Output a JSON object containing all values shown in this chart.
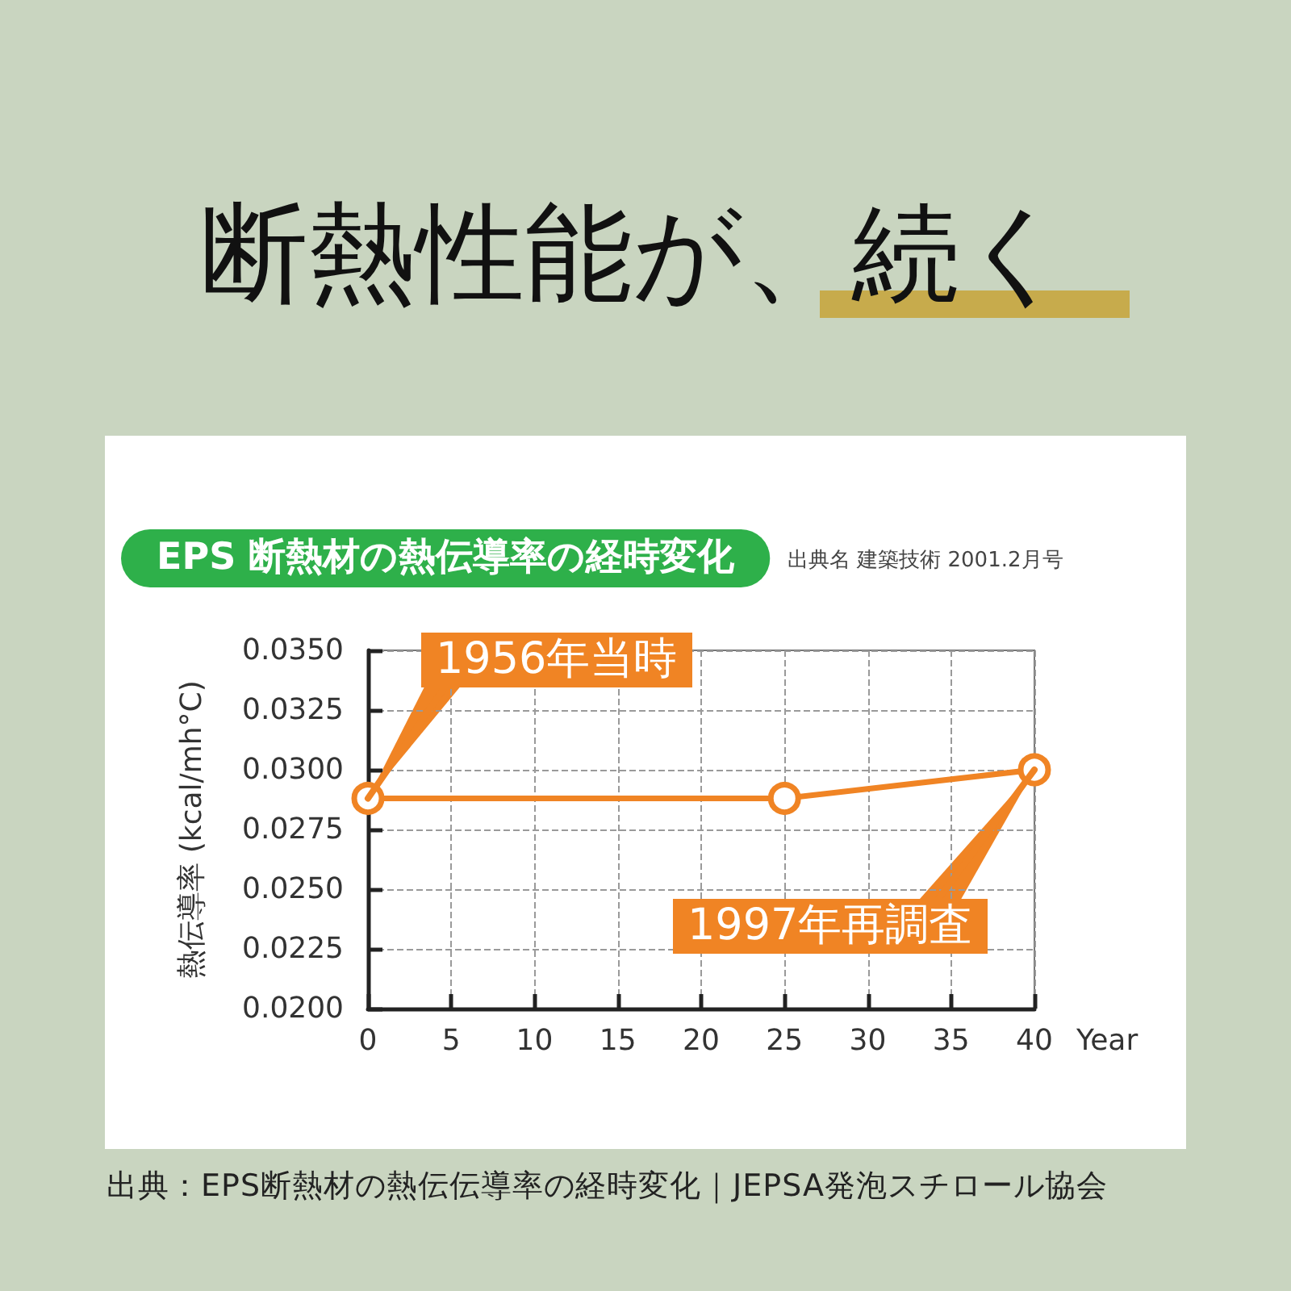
{
  "chart_data": {
    "type": "line",
    "title": "断熱性能が、続く",
    "subtitle": "EPS 断熱材の熱伝導率の経時変化",
    "xlabel": "Year",
    "ylabel": "熱伝導率 (kcal/mh°C)",
    "x": [
      0,
      25,
      40
    ],
    "series": [
      {
        "color": "#f08424",
        "values": [
          0.0288,
          0.0288,
          0.03
        ]
      }
    ],
    "xlim": [
      0,
      40
    ],
    "xticks": [
      0,
      5,
      10,
      15,
      20,
      25,
      30,
      35,
      40
    ],
    "ylim": [
      0.02,
      0.035
    ],
    "yticks": [
      {
        "value": 0.02,
        "label": "0.0200"
      },
      0.0225,
      {
        "value": 0.025,
        "label": "0.0250"
      },
      0.0275,
      {
        "value": 0.03,
        "label": "0.0300"
      },
      0.0325,
      {
        "value": 0.035,
        "label": "0.0350"
      }
    ],
    "grid": true,
    "marker": "circle",
    "line_style": "solid",
    "annotations": [
      "出典名 建築技術 2001.2月号",
      {
        "text": "1956年当時",
        "x": 0,
        "y": 0.0288
      },
      {
        "text": "1997年再調査",
        "x": 40,
        "y": 0.03
      },
      "出典：EPS断熱材の熱伝伝導率の経時変化｜JEPSA発泡スチロール協会"
    ]
  }
}
